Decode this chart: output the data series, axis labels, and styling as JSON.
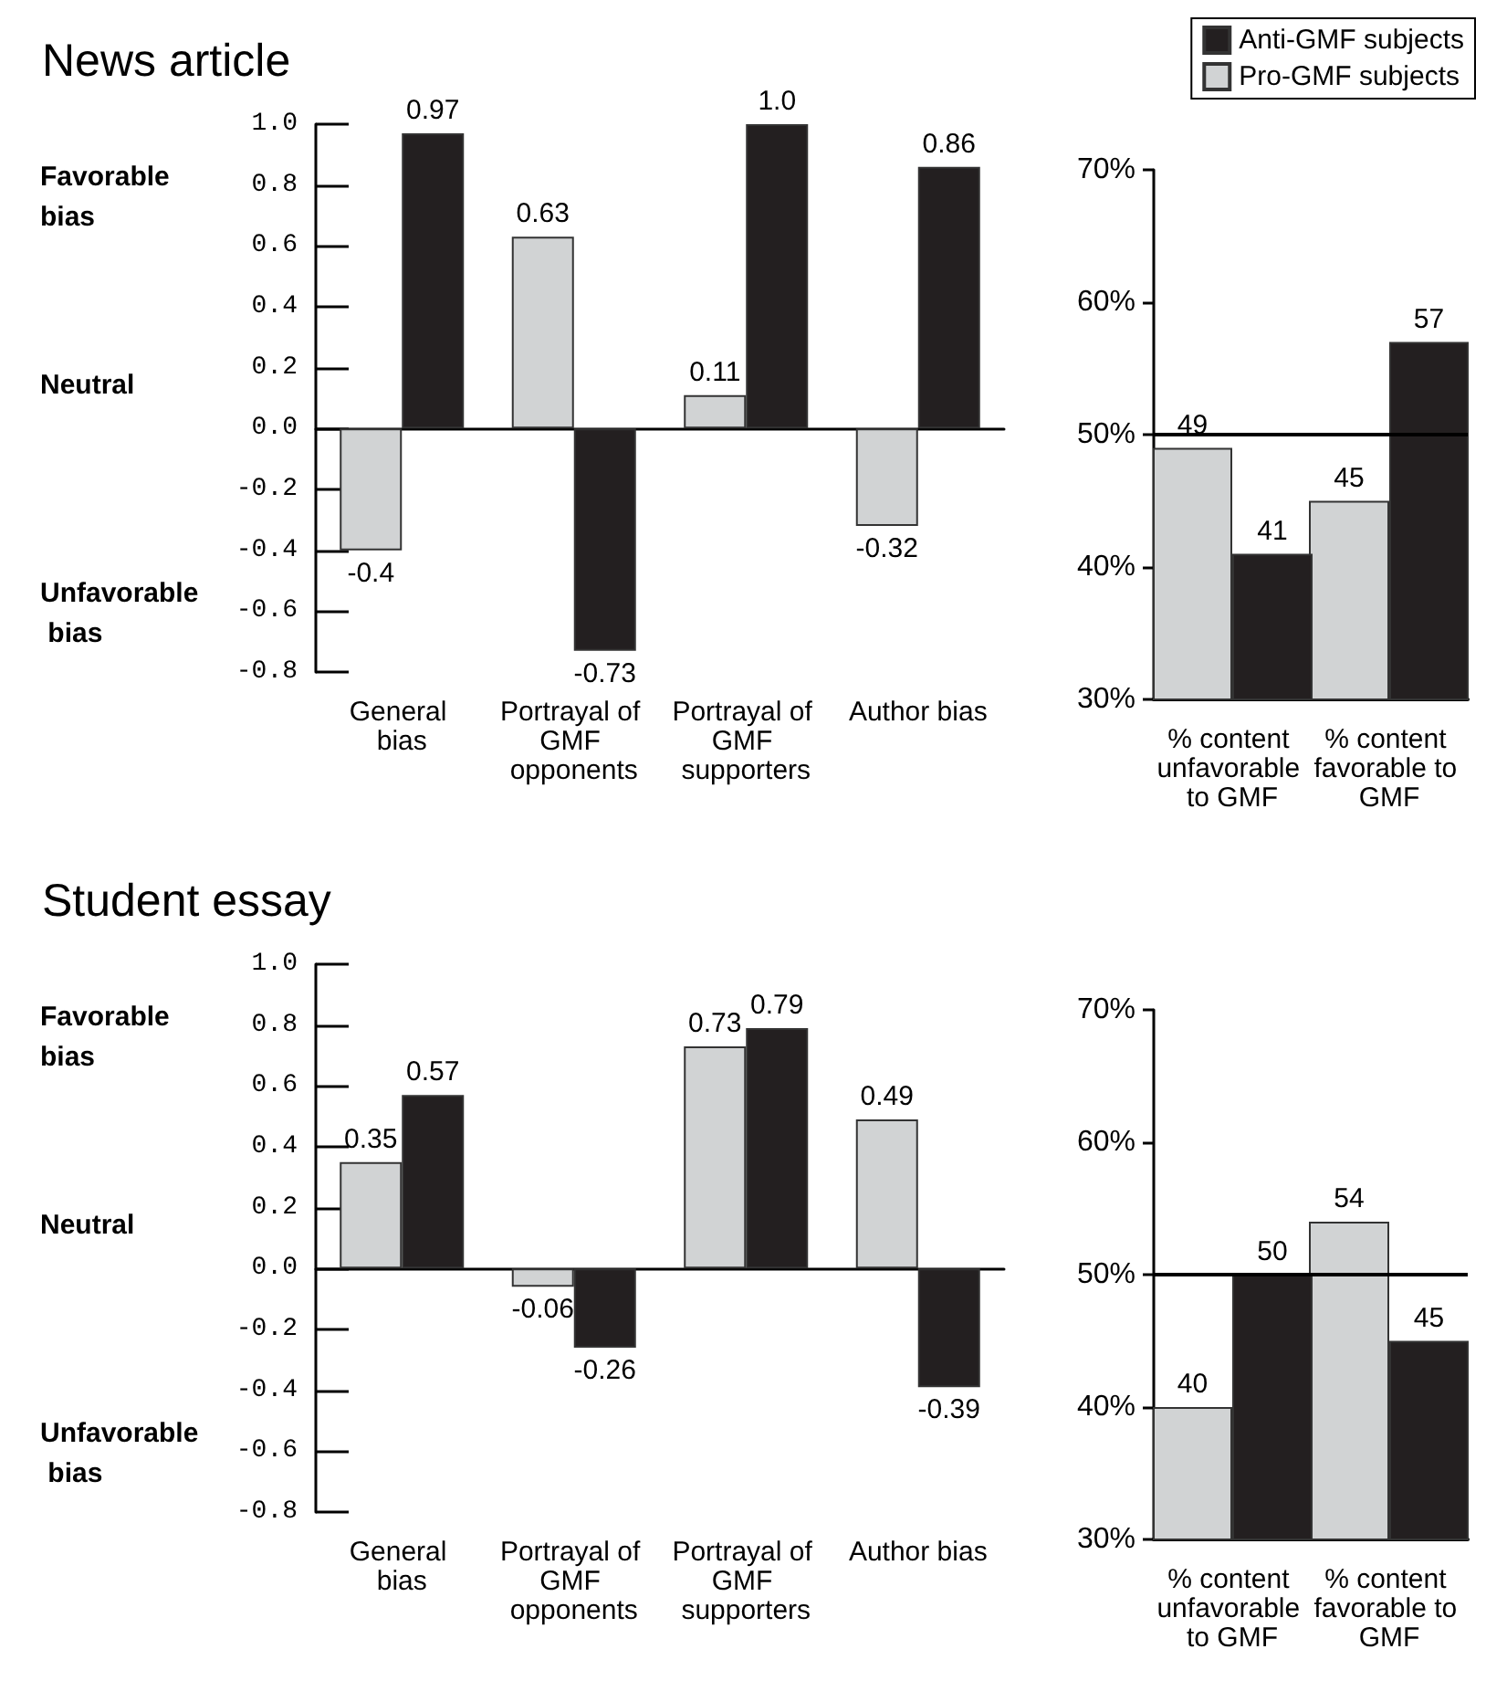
{
  "chart_data": [
    {
      "type": "bar",
      "title": "News article",
      "categories": [
        "General bias",
        "Portrayal of GMF opponents",
        "Portrayal of GMF supporters",
        "Author bias"
      ],
      "series": [
        {
          "color": "#d1d3d4",
          "values": [
            -0.4,
            0.63,
            0.11,
            -0.32
          ],
          "value_labels": [
            "-0.4",
            "0.63",
            "0.11",
            "-0.32"
          ]
        },
        {
          "color": "#231f20",
          "values": [
            0.97,
            -0.73,
            1.0,
            0.86
          ],
          "value_labels": [
            "0.97",
            "-0.73",
            "1.0",
            "0.86"
          ]
        }
      ],
      "ylim": [
        -0.8,
        1.0
      ],
      "yticks": [
        {
          "value": 1,
          "label": "1.0"
        },
        0.8,
        0.6,
        0.4,
        0.2,
        {
          "value": 0,
          "label": "0.0"
        },
        -0.2,
        -0.4,
        -0.6,
        -0.8
      ],
      "annotations": [
        "Favorable bias",
        "Neutral",
        "Unfavorable bias"
      ]
    },
    {
      "type": "bar",
      "categories": [
        "% content unfavorable to GMF",
        "% content favorable to GMF"
      ],
      "series": [
        {
          "name": "Pro-GMF subjects",
          "color": "#d1d3d4",
          "values": [
            49,
            45
          ],
          "value_labels": [
            "49",
            "45"
          ]
        },
        {
          "name": "Anti-GMF subjects",
          "color": "#231f20",
          "values": [
            41,
            57
          ],
          "value_labels": [
            "41",
            "57"
          ]
        }
      ],
      "ylim": [
        30,
        70
      ],
      "yticks": [
        {
          "value": 30,
          "label": "30%"
        },
        {
          "value": 40,
          "label": "40%"
        },
        {
          "value": 50,
          "label": "50%"
        },
        {
          "value": 60,
          "label": "60%"
        },
        {
          "value": 70,
          "label": "70%"
        }
      ],
      "ref_lines": [
        {
          "axis": "y",
          "value": 50
        }
      ],
      "legend": "top right"
    },
    {
      "type": "bar",
      "title": "Student essay",
      "categories": [
        "General bias",
        "Portrayal of GMF opponents",
        "Portrayal of GMF supporters",
        "Author bias"
      ],
      "series": [
        {
          "color": "#d1d3d4",
          "values": [
            0.35,
            -0.06,
            0.73,
            0.49
          ],
          "value_labels": [
            "0.35",
            "-0.06",
            "0.73",
            "0.49"
          ]
        },
        {
          "color": "#231f20",
          "values": [
            0.57,
            -0.26,
            0.79,
            -0.39
          ],
          "value_labels": [
            "0.57",
            "-0.26",
            "0.79",
            "-0.39"
          ]
        }
      ],
      "ylim": [
        -0.8,
        1.0
      ],
      "yticks": [
        {
          "value": 1,
          "label": "1.0"
        },
        0.8,
        0.6,
        0.4,
        0.2,
        {
          "value": 0,
          "label": "0.0"
        },
        -0.2,
        -0.4,
        -0.6,
        -0.8
      ],
      "annotations": [
        "Favorable bias",
        "Neutral",
        "Unfavorable bias"
      ]
    },
    {
      "type": "bar",
      "categories": [
        "% content unfavorable to GMF",
        "% content favorable to GMF"
      ],
      "series": [
        {
          "color": "#d1d3d4",
          "values": [
            40,
            54
          ],
          "value_labels": [
            "40",
            "54"
          ]
        },
        {
          "color": "#231f20",
          "values": [
            50,
            45
          ],
          "value_labels": [
            "50",
            "45"
          ]
        }
      ],
      "ylim": [
        30,
        70
      ],
      "yticks": [
        {
          "value": 30,
          "label": "30%"
        },
        {
          "value": 40,
          "label": "40%"
        },
        {
          "value": 50,
          "label": "50%"
        },
        {
          "value": 60,
          "label": "60%"
        },
        {
          "value": 70,
          "label": "70%"
        }
      ],
      "ref_lines": [
        {
          "axis": "y",
          "value": 50
        }
      ]
    }
  ]
}
